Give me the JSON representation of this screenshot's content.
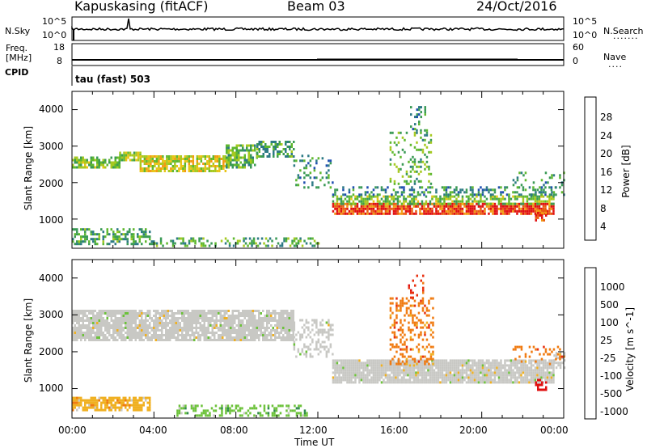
{
  "header": {
    "station": "Kapuskasing (fitACF)",
    "beam": "Beam 03",
    "date": "24/Oct/2016"
  },
  "panels": {
    "nsky": {
      "label": "N.Sky",
      "ticks_left": [
        "10^5",
        "10^0"
      ],
      "ticks_right": [
        "10^5",
        "10^0"
      ],
      "right_label": "N.Search",
      "right_label_suffix": "......."
    },
    "freq": {
      "label_top": "Freq.",
      "label_bottom": "[MHz]",
      "ticks_left": [
        "18",
        "8"
      ],
      "ticks_right": [
        "60",
        "0"
      ],
      "right_label": "Nave",
      "right_label_suffix": "....",
      "cpid_label": "CPID",
      "cpid_value": "tau (fast) 503"
    }
  },
  "chart_data": [
    {
      "type": "heatmap",
      "name": "power",
      "ylabel": "Slant Range [km]",
      "yticks": [
        "4000",
        "3000",
        "2000",
        "1000"
      ],
      "ylim": [
        200,
        4500
      ],
      "colorbar": {
        "label": "Power [dB]",
        "ticks": [
          "28",
          "24",
          "20",
          "16",
          "12",
          "8",
          "4"
        ],
        "range": [
          0,
          30
        ],
        "colors": [
          "#0a1ee8",
          "#1f4fb0",
          "#2d7a85",
          "#3a9a55",
          "#5fb82f",
          "#a6c920",
          "#e8c416",
          "#f29a12",
          "#ea5a10",
          "#e01010"
        ]
      },
      "bands": [
        {
          "x": [
            0.0,
            2.3
          ],
          "y": [
            2450,
            2750
          ],
          "level": 14,
          "density": 0.75
        },
        {
          "x": [
            2.3,
            3.3
          ],
          "y": [
            2650,
            2850
          ],
          "level": 16,
          "density": 0.8
        },
        {
          "x": [
            3.3,
            7.5
          ],
          "y": [
            2350,
            2750
          ],
          "level": 18,
          "density": 0.8
        },
        {
          "x": [
            7.5,
            9.0
          ],
          "y": [
            2450,
            3050
          ],
          "level": 13,
          "density": 0.7
        },
        {
          "x": [
            9.0,
            10.8
          ],
          "y": [
            2750,
            3150
          ],
          "level": 11,
          "density": 0.6
        },
        {
          "x": [
            10.8,
            12.7
          ],
          "y": [
            1900,
            2800
          ],
          "level": 9,
          "density": 0.25
        },
        {
          "x": [
            12.7,
            23.5
          ],
          "y": [
            1180,
            1450
          ],
          "level": 27,
          "density": 0.85
        },
        {
          "x": [
            12.7,
            23.5
          ],
          "y": [
            1450,
            1700
          ],
          "level": 14,
          "density": 0.6
        },
        {
          "x": [
            12.7,
            23.8
          ],
          "y": [
            1700,
            1900
          ],
          "level": 8,
          "density": 0.35
        },
        {
          "x": [
            0.0,
            4.0
          ],
          "y": [
            350,
            750
          ],
          "level": 11,
          "density": 0.5
        },
        {
          "x": [
            4.0,
            12.0
          ],
          "y": [
            300,
            550
          ],
          "level": 12,
          "density": 0.4
        },
        {
          "x": [
            15.5,
            17.5
          ],
          "y": [
            2000,
            3500
          ],
          "level": 13,
          "density": 0.25
        },
        {
          "x": [
            16.5,
            17.2
          ],
          "y": [
            3500,
            4100
          ],
          "level": 9,
          "density": 0.3
        },
        {
          "x": [
            21.5,
            24.0
          ],
          "y": [
            1700,
            2300
          ],
          "level": 10,
          "density": 0.2
        },
        {
          "x": [
            22.6,
            23.1
          ],
          "y": [
            1000,
            1300
          ],
          "level": 26,
          "density": 0.6
        }
      ]
    },
    {
      "type": "heatmap",
      "name": "velocity",
      "ylabel": "Slant Range [km]",
      "yticks": [
        "4000",
        "3000",
        "2000",
        "1000"
      ],
      "ylim": [
        200,
        4500
      ],
      "xlabel": "Time UT",
      "xticks": [
        "00:00",
        "04:00",
        "08:00",
        "12:00",
        "16:00",
        "20:00",
        "00:00"
      ],
      "xlim": [
        0,
        24
      ],
      "colorbar": {
        "label": "Velocity [m s^-1]",
        "ticks": [
          "1000",
          "500",
          "100",
          "25",
          "-25",
          "-100",
          "-500",
          "-1000"
        ],
        "colors": [
          "#1a2fc8",
          "#2a64a0",
          "#2f8a4c",
          "#6cc23a",
          "#c8c8c4",
          "#f0b020",
          "#f07a10",
          "#e83010",
          "#e01010"
        ]
      },
      "bands": [
        {
          "x": [
            0.0,
            10.8
          ],
          "y": [
            2350,
            3150
          ],
          "class": 4,
          "density": 0.85
        },
        {
          "x": [
            10.8,
            12.7
          ],
          "y": [
            1900,
            2900
          ],
          "class": 4,
          "density": 0.4
        },
        {
          "x": [
            12.7,
            23.5
          ],
          "y": [
            1200,
            1800
          ],
          "class": 4,
          "density": 0.9
        },
        {
          "x": [
            23.5,
            24.0
          ],
          "y": [
            1600,
            2000
          ],
          "class": 4,
          "density": 0.6
        },
        {
          "x": [
            0.0,
            3.8
          ],
          "y": [
            450,
            800
          ],
          "class": 5,
          "density": 0.8
        },
        {
          "x": [
            5.0,
            11.5
          ],
          "y": [
            300,
            600
          ],
          "class": 3,
          "density": 0.45
        },
        {
          "x": [
            15.5,
            17.6
          ],
          "y": [
            1700,
            3500
          ],
          "class": 6,
          "density": 0.35
        },
        {
          "x": [
            16.4,
            17.1
          ],
          "y": [
            3500,
            4100
          ],
          "class": 7,
          "density": 0.3
        },
        {
          "x": [
            22.6,
            23.1
          ],
          "y": [
            1000,
            1300
          ],
          "class": 8,
          "density": 0.7
        },
        {
          "x": [
            21.5,
            24.0
          ],
          "y": [
            1700,
            2200
          ],
          "class": 6,
          "density": 0.25
        }
      ]
    }
  ],
  "styles": {
    "axis_color": "#000000",
    "background": "#ffffff",
    "gap_color": "#c8c8c4"
  }
}
